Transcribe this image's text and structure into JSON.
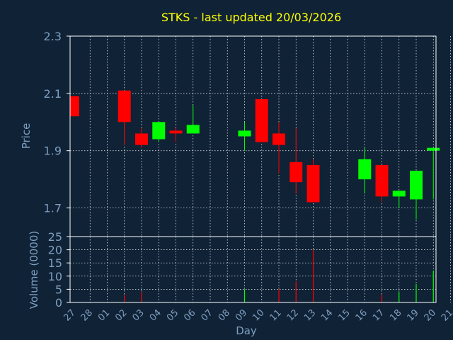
{
  "chart_data": [
    {
      "type": "candlestick",
      "title": "STKS - last updated 20/03/2026",
      "ylabel": "Price",
      "xlabel": "Day",
      "ylim": [
        1.6,
        2.3
      ],
      "yticks": [
        "2.3",
        "2.1",
        "1.9",
        "1.7"
      ],
      "ytick_values": [
        2.3,
        2.1,
        1.9,
        1.7
      ],
      "x_labels": [
        "27",
        "28",
        "01",
        "02",
        "03",
        "04",
        "05",
        "06",
        "07",
        "08",
        "09",
        "10",
        "11",
        "12",
        "13",
        "14",
        "15",
        "16",
        "17",
        "18",
        "19",
        "20",
        "21"
      ],
      "candles": [
        {
          "day": "27",
          "open": 2.09,
          "close": 2.02,
          "high": 2.09,
          "low": 2.02
        },
        {
          "day": "02",
          "open": 2.11,
          "close": 2.0,
          "high": 2.11,
          "low": 1.92
        },
        {
          "day": "03",
          "open": 1.96,
          "close": 1.92,
          "high": 1.98,
          "low": 1.91
        },
        {
          "day": "04",
          "open": 1.94,
          "close": 2.0,
          "high": 2.0,
          "low": 1.93
        },
        {
          "day": "05",
          "open": 1.97,
          "close": 1.96,
          "high": 1.98,
          "low": 1.93
        },
        {
          "day": "06",
          "open": 1.96,
          "close": 1.99,
          "high": 2.06,
          "low": 1.96
        },
        {
          "day": "09",
          "open": 1.95,
          "close": 1.97,
          "high": 2.0,
          "low": 1.9
        },
        {
          "day": "10",
          "open": 2.08,
          "close": 1.93,
          "high": 2.08,
          "low": 1.93
        },
        {
          "day": "11",
          "open": 1.96,
          "close": 1.92,
          "high": 2.0,
          "low": 1.82
        },
        {
          "day": "12",
          "open": 1.86,
          "close": 1.79,
          "high": 1.98,
          "low": 1.75
        },
        {
          "day": "13",
          "open": 1.85,
          "close": 1.72,
          "high": 1.87,
          "low": 1.72
        },
        {
          "day": "16",
          "open": 1.8,
          "close": 1.87,
          "high": 1.91,
          "low": 1.75
        },
        {
          "day": "17",
          "open": 1.85,
          "close": 1.74,
          "high": 1.85,
          "low": 1.72
        },
        {
          "day": "18",
          "open": 1.74,
          "close": 1.76,
          "high": 1.76,
          "low": 1.7
        },
        {
          "day": "19",
          "open": 1.73,
          "close": 1.83,
          "high": 1.83,
          "low": 1.66
        },
        {
          "day": "20",
          "open": 1.9,
          "close": 1.91,
          "high": 1.91,
          "low": 1.73
        }
      ],
      "colors": {
        "up": "#00ff00",
        "down": "#ff0000"
      }
    },
    {
      "type": "bar",
      "ylabel": "Volume (0000)",
      "ylim": [
        0,
        25
      ],
      "yticks": [
        "25",
        "20",
        "15",
        "10",
        "5",
        "0"
      ],
      "ytick_values": [
        25,
        20,
        15,
        10,
        5,
        0
      ],
      "volumes": [
        {
          "day": "02",
          "value": 3,
          "direction": "down"
        },
        {
          "day": "03",
          "value": 4,
          "direction": "down"
        },
        {
          "day": "09",
          "value": 5,
          "direction": "up"
        },
        {
          "day": "11",
          "value": 5,
          "direction": "down"
        },
        {
          "day": "12",
          "value": 8,
          "direction": "down"
        },
        {
          "day": "13",
          "value": 20,
          "direction": "down"
        },
        {
          "day": "17",
          "value": 3,
          "direction": "down"
        },
        {
          "day": "18",
          "value": 4,
          "direction": "up"
        },
        {
          "day": "19",
          "value": 7,
          "direction": "up"
        },
        {
          "day": "20",
          "value": 12,
          "direction": "up"
        }
      ]
    }
  ],
  "colors": {
    "background": "#0f2236",
    "title": "#ffff00",
    "axis_text": "#7f9fbf",
    "frame": "#ffffff",
    "grid": "#ffffff",
    "up": "#00ff00",
    "down": "#ff0000"
  }
}
